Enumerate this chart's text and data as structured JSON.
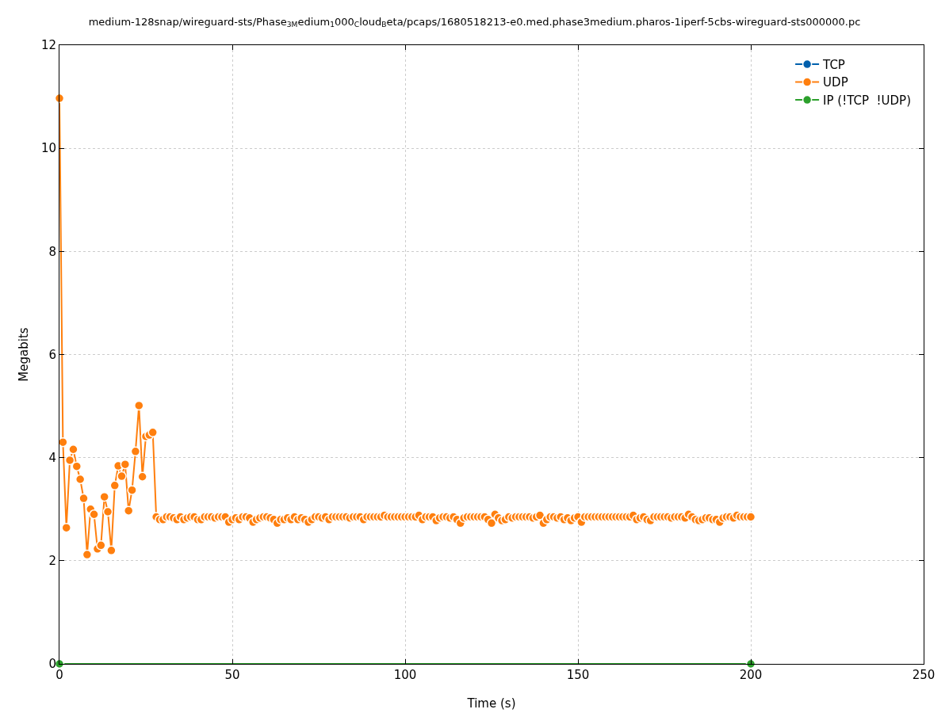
{
  "chart_data": {
    "type": "line",
    "title": "medium-128snap/wireguard-sts/Phase$_{3M}$edium$_{1}$000$_{C}$loud$_{B}$eta/pcaps/1680518213-e0.med.phase3medium.pharos-1iperf-5cbs-wireguard-sts000000.pc",
    "xlabel": "Time (s)",
    "ylabel": "Megabits",
    "xlim": [
      0,
      250
    ],
    "xticks": [
      0,
      50,
      100,
      150,
      200,
      250
    ],
    "ylim": [
      0,
      12
    ],
    "yticks": [
      0,
      2,
      4,
      6,
      8,
      10,
      12
    ],
    "grid": true,
    "legend": "top right",
    "marker": "circle",
    "line_style": "solid",
    "series": [
      {
        "name": "TCP",
        "color": "#0060ad"
      },
      {
        "name": "UDP",
        "color": "#ff7f0e",
        "x": [
          0,
          1,
          2,
          3,
          4,
          5,
          6,
          7,
          8,
          9,
          10,
          11,
          12,
          13,
          14,
          15,
          16,
          17,
          18,
          19,
          20,
          21,
          22,
          23,
          24,
          25,
          26,
          27,
          28,
          29,
          30,
          31,
          32,
          33,
          34,
          35,
          36,
          37,
          38,
          39,
          40,
          41,
          42,
          43,
          44,
          45,
          46,
          47,
          48,
          49,
          50,
          51,
          52,
          53,
          54,
          55,
          56,
          57,
          58,
          59,
          60,
          61,
          62,
          63,
          64,
          65,
          66,
          67,
          68,
          69,
          70,
          71,
          72,
          73,
          74,
          75,
          76,
          77,
          78,
          79,
          80,
          81,
          82,
          83,
          84,
          85,
          86,
          87,
          88,
          89,
          90,
          91,
          92,
          93,
          94,
          95,
          96,
          97,
          98,
          99,
          100,
          101,
          102,
          103,
          104,
          105,
          106,
          107,
          108,
          109,
          110,
          111,
          112,
          113,
          114,
          115,
          116,
          117,
          118,
          119,
          120,
          121,
          122,
          123,
          124,
          125,
          126,
          127,
          128,
          129,
          130,
          131,
          132,
          133,
          134,
          135,
          136,
          137,
          138,
          139,
          140,
          141,
          142,
          143,
          144,
          145,
          146,
          147,
          148,
          149,
          150,
          151,
          152,
          153,
          154,
          155,
          156,
          157,
          158,
          159,
          160,
          161,
          162,
          163,
          164,
          165,
          166,
          167,
          168,
          169,
          170,
          171,
          172,
          173,
          174,
          175,
          176,
          177,
          178,
          179,
          180,
          181,
          182,
          183,
          184,
          185,
          186,
          187,
          188,
          189,
          190,
          191,
          192,
          193,
          194,
          195,
          196,
          197,
          198,
          199,
          200
        ],
        "values": [
          10.97,
          4.3,
          2.64,
          3.95,
          4.16,
          3.83,
          3.58,
          3.21,
          2.12,
          3.0,
          2.9,
          2.23,
          2.3,
          3.24,
          2.95,
          2.2,
          3.46,
          3.84,
          3.64,
          3.87,
          2.97,
          3.37,
          4.12,
          5.01,
          3.63,
          4.41,
          4.44,
          4.49,
          2.85,
          2.8,
          2.8,
          2.85,
          2.85,
          2.83,
          2.8,
          2.85,
          2.8,
          2.83,
          2.85,
          2.85,
          2.8,
          2.8,
          2.85,
          2.85,
          2.85,
          2.83,
          2.85,
          2.85,
          2.85,
          2.75,
          2.8,
          2.83,
          2.8,
          2.85,
          2.85,
          2.83,
          2.75,
          2.8,
          2.83,
          2.85,
          2.85,
          2.83,
          2.8,
          2.73,
          2.8,
          2.8,
          2.83,
          2.8,
          2.85,
          2.8,
          2.83,
          2.8,
          2.75,
          2.8,
          2.85,
          2.85,
          2.83,
          2.85,
          2.8,
          2.85,
          2.85,
          2.85,
          2.85,
          2.85,
          2.83,
          2.85,
          2.85,
          2.85,
          2.8,
          2.85,
          2.85,
          2.85,
          2.85,
          2.85,
          2.88,
          2.85,
          2.85,
          2.85,
          2.85,
          2.85,
          2.85,
          2.85,
          2.85,
          2.85,
          2.88,
          2.8,
          2.85,
          2.85,
          2.85,
          2.78,
          2.83,
          2.85,
          2.85,
          2.83,
          2.85,
          2.8,
          2.73,
          2.83,
          2.85,
          2.85,
          2.85,
          2.85,
          2.85,
          2.85,
          2.8,
          2.73,
          2.9,
          2.83,
          2.78,
          2.8,
          2.85,
          2.83,
          2.85,
          2.85,
          2.85,
          2.85,
          2.85,
          2.83,
          2.85,
          2.88,
          2.73,
          2.8,
          2.85,
          2.85,
          2.83,
          2.85,
          2.8,
          2.83,
          2.78,
          2.83,
          2.85,
          2.75,
          2.85,
          2.85,
          2.85,
          2.85,
          2.85,
          2.85,
          2.85,
          2.85,
          2.85,
          2.85,
          2.85,
          2.85,
          2.85,
          2.85,
          2.88,
          2.8,
          2.83,
          2.85,
          2.8,
          2.78,
          2.85,
          2.85,
          2.85,
          2.85,
          2.85,
          2.83,
          2.85,
          2.85,
          2.85,
          2.83,
          2.9,
          2.85,
          2.8,
          2.78,
          2.8,
          2.83,
          2.83,
          2.8,
          2.8,
          2.75,
          2.83,
          2.85,
          2.85,
          2.83,
          2.88,
          2.85,
          2.85,
          2.85,
          2.85
        ]
      },
      {
        "name": "IP (!TCP  !UDP)",
        "color": "#2ca02c",
        "x": [
          0,
          200
        ],
        "values": [
          0,
          0
        ]
      }
    ]
  }
}
